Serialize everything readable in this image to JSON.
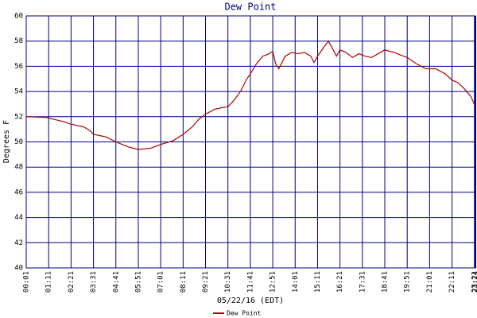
{
  "chart_data": {
    "type": "line",
    "title": "Dew Point",
    "x_label": "05/22/16 (EDT)",
    "y_label": "Degrees F",
    "x": [
      1,
      60,
      120,
      141,
      180,
      200,
      211,
      250,
      281,
      320,
      351,
      390,
      421,
      460,
      491,
      520,
      540,
      561,
      590,
      631,
      650,
      670,
      690,
      701,
      720,
      740,
      760,
      771,
      780,
      790,
      810,
      830,
      850,
      870,
      890,
      900,
      911,
      930,
      945,
      960,
      970,
      981,
      1000,
      1020,
      1040,
      1060,
      1080,
      1100,
      1121,
      1150,
      1170,
      1191,
      1220,
      1250,
      1280,
      1310,
      1331,
      1350,
      1370,
      1390,
      1404
    ],
    "series": [
      {
        "name": "Dew Point",
        "color": "#b00000",
        "values": [
          52.0,
          51.95,
          51.6,
          51.4,
          51.2,
          50.9,
          50.6,
          50.4,
          50.0,
          49.6,
          49.4,
          49.5,
          49.8,
          50.1,
          50.6,
          51.2,
          51.8,
          52.2,
          52.6,
          52.8,
          53.3,
          54.0,
          55.0,
          55.4,
          56.2,
          56.8,
          57.0,
          57.2,
          56.2,
          55.8,
          56.8,
          57.1,
          57.0,
          57.1,
          56.8,
          56.3,
          56.8,
          57.5,
          58.0,
          57.3,
          56.8,
          57.3,
          57.1,
          56.7,
          57.0,
          56.8,
          56.7,
          57.0,
          57.3,
          57.1,
          56.9,
          56.7,
          56.2,
          55.8,
          55.8,
          55.4,
          54.9,
          54.7,
          54.2,
          53.6,
          52.8
        ]
      }
    ],
    "xlim": [
      1,
      1404
    ],
    "xticks": [
      {
        "value": 1,
        "label": "00:01"
      },
      {
        "value": 71,
        "label": "01:11"
      },
      {
        "value": 141,
        "label": "02:21"
      },
      {
        "value": 211,
        "label": "03:31"
      },
      {
        "value": 281,
        "label": "04:41"
      },
      {
        "value": 351,
        "label": "05:51"
      },
      {
        "value": 421,
        "label": "07:01"
      },
      {
        "value": 491,
        "label": "08:11"
      },
      {
        "value": 561,
        "label": "09:21"
      },
      {
        "value": 631,
        "label": "10:31"
      },
      {
        "value": 701,
        "label": "11:41"
      },
      {
        "value": 771,
        "label": "12:51"
      },
      {
        "value": 841,
        "label": "14:01"
      },
      {
        "value": 911,
        "label": "15:11"
      },
      {
        "value": 981,
        "label": "16:21"
      },
      {
        "value": 1051,
        "label": "17:31"
      },
      {
        "value": 1121,
        "label": "18:41"
      },
      {
        "value": 1191,
        "label": "19:51"
      },
      {
        "value": 1261,
        "label": "21:01"
      },
      {
        "value": 1331,
        "label": "22:11"
      },
      {
        "value": 1401,
        "label": "23:21"
      },
      {
        "value": 1404,
        "label": "23:24"
      }
    ],
    "ylim": [
      40,
      60
    ],
    "yticks": [
      40,
      42,
      44,
      46,
      48,
      50,
      52,
      54,
      56,
      58,
      60
    ],
    "grid": true
  }
}
